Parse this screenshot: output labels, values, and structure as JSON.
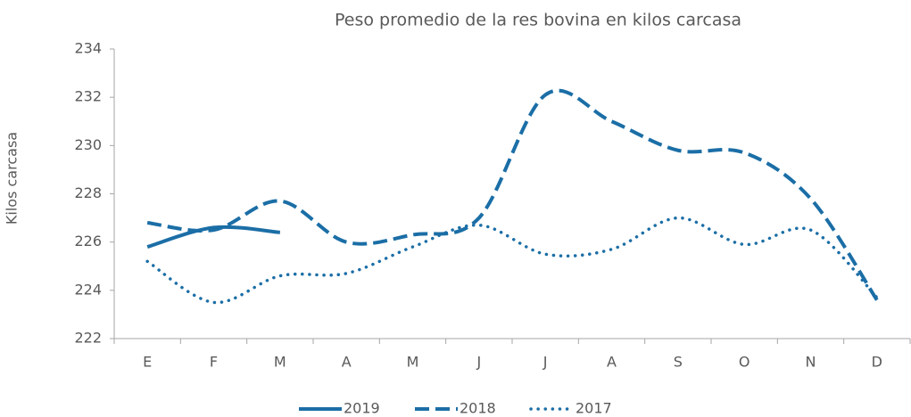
{
  "chart_data": {
    "type": "line",
    "title": "Peso promedio de la res bovina en kilos carcasa",
    "y_label": "Kilos carcasa",
    "categories": [
      "E",
      "F",
      "M",
      "A",
      "M",
      "J",
      "J",
      "A",
      "S",
      "O",
      "N",
      "D"
    ],
    "series": [
      {
        "name": "2019",
        "color": "#1b6ea6",
        "style": "solid",
        "values": [
          225.8,
          226.6,
          226.4,
          null,
          null,
          null,
          null,
          null,
          null,
          null,
          null,
          null
        ]
      },
      {
        "name": "2018",
        "color": "#1b6ea6",
        "style": "dashed",
        "values": [
          226.8,
          226.5,
          227.7,
          226.0,
          226.3,
          227.0,
          232.1,
          231.0,
          229.8,
          229.7,
          227.8,
          223.6
        ]
      },
      {
        "name": "2017",
        "color": "#1b6ea6",
        "style": "dotted",
        "values": [
          225.2,
          223.5,
          224.6,
          224.7,
          225.8,
          226.7,
          225.5,
          225.7,
          227.0,
          225.9,
          226.5,
          223.7
        ]
      }
    ],
    "ylim": [
      222,
      234
    ],
    "yticks": [
      222,
      224,
      226,
      228,
      230,
      232,
      234
    ],
    "grid": false,
    "legend": "bottom"
  }
}
